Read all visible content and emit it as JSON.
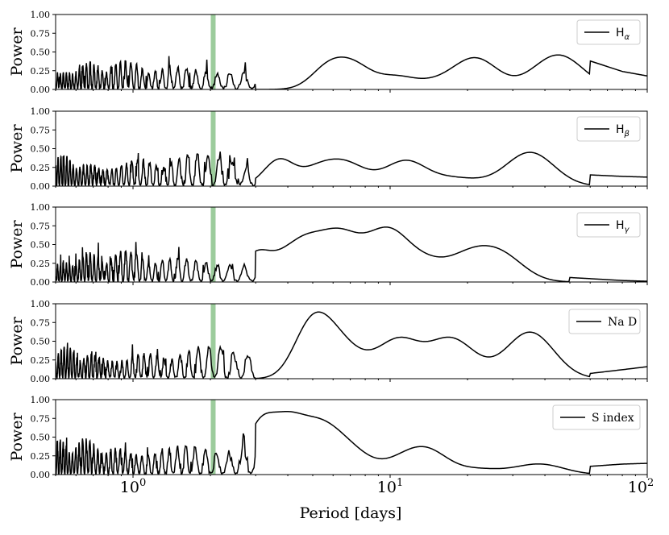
{
  "chart_data": {
    "type": "line",
    "xscale": "log",
    "xlim": [
      0.5,
      100
    ],
    "xlabel": "Period [days]",
    "xticks": [
      1,
      10,
      100
    ],
    "xtick_labels": [
      {
        "base": "10",
        "exp": "0"
      },
      {
        "base": "10",
        "exp": "1"
      },
      {
        "base": "10",
        "exp": "2"
      }
    ],
    "shared_ylabel": "Power",
    "yticks": [
      0.0,
      0.25,
      0.5,
      0.75,
      1.0
    ],
    "ytick_labels": [
      "0.00",
      "0.25",
      "0.50",
      "0.75",
      "1.00"
    ],
    "highlight_period": 2.05,
    "highlight_color": "#9ccc9c",
    "line_color": "#000000",
    "legend_placement": "top-right",
    "panels": [
      {
        "legend": {
          "base": "H",
          "sub": "α",
          "italic_sub": true
        },
        "ylim": [
          0,
          1
        ],
        "peaks": [
          [
            5.7,
            0.27
          ],
          [
            7.2,
            0.3
          ],
          [
            10.5,
            0.16
          ],
          [
            15,
            0.08
          ],
          [
            21.5,
            0.41
          ],
          [
            45,
            0.46
          ]
        ],
        "tail": [
          [
            60,
            0.38
          ],
          [
            80,
            0.24
          ],
          [
            100,
            0.18
          ]
        ],
        "noise_level": 0.2,
        "seed": 11
      },
      {
        "legend": {
          "base": "H",
          "sub": "β",
          "italic_sub": true
        },
        "ylim": [
          0,
          1
        ],
        "peaks": [
          [
            3.7,
            0.35
          ],
          [
            5.2,
            0.21
          ],
          [
            6.6,
            0.26
          ],
          [
            8.2,
            0.08
          ],
          [
            11.5,
            0.32
          ],
          [
            16,
            0.07
          ],
          [
            20,
            0.06
          ],
          [
            35,
            0.45
          ]
        ],
        "tail": [
          [
            60,
            0.15
          ],
          [
            80,
            0.13
          ],
          [
            100,
            0.12
          ]
        ],
        "noise_level": 0.22,
        "seed": 23
      },
      {
        "legend": {
          "base": "H",
          "sub": "γ",
          "italic_sub": true
        },
        "ylim": [
          0,
          1
        ],
        "peaks": [
          [
            3.0,
            0.36
          ],
          [
            3.8,
            0.22
          ],
          [
            4.6,
            0.37
          ],
          [
            5.4,
            0.22
          ],
          [
            6.4,
            0.46
          ],
          [
            8.0,
            0.25
          ],
          [
            10.0,
            0.56
          ],
          [
            13.5,
            0.24
          ],
          [
            20,
            0.3
          ],
          [
            27,
            0.34
          ]
        ],
        "tail": [
          [
            50,
            0.06
          ],
          [
            80,
            0.02
          ],
          [
            100,
            0.01
          ]
        ],
        "noise_level": 0.22,
        "seed": 37
      },
      {
        "legend": {
          "base": "Na D",
          "sub": "",
          "italic_sub": false
        },
        "ylim": [
          0,
          1
        ],
        "peaks": [
          [
            4.7,
            0.43
          ],
          [
            5.4,
            0.42
          ],
          [
            6.2,
            0.22
          ],
          [
            7.0,
            0.18
          ],
          [
            8.8,
            0.13
          ],
          [
            11.0,
            0.45
          ],
          [
            16,
            0.32
          ],
          [
            19,
            0.27
          ],
          [
            35,
            0.62
          ]
        ],
        "tail": [
          [
            60,
            0.07
          ],
          [
            80,
            0.12
          ],
          [
            100,
            0.16
          ]
        ],
        "noise_level": 0.22,
        "seed": 51
      },
      {
        "legend": {
          "base": "S index",
          "sub": "",
          "italic_sub": false
        },
        "ylim": [
          0,
          1
        ],
        "peaks": [
          [
            3.1,
            0.61
          ],
          [
            3.9,
            0.53
          ],
          [
            4.6,
            0.28
          ],
          [
            5.3,
            0.32
          ],
          [
            6.0,
            0.24
          ],
          [
            7.0,
            0.19
          ],
          [
            8.0,
            0.08
          ],
          [
            11,
            0.15
          ],
          [
            14,
            0.3
          ],
          [
            22,
            0.07
          ],
          [
            38,
            0.14
          ]
        ],
        "tail": [
          [
            60,
            0.11
          ],
          [
            80,
            0.14
          ],
          [
            100,
            0.15
          ]
        ],
        "noise_level": 0.25,
        "seed": 67
      }
    ]
  }
}
